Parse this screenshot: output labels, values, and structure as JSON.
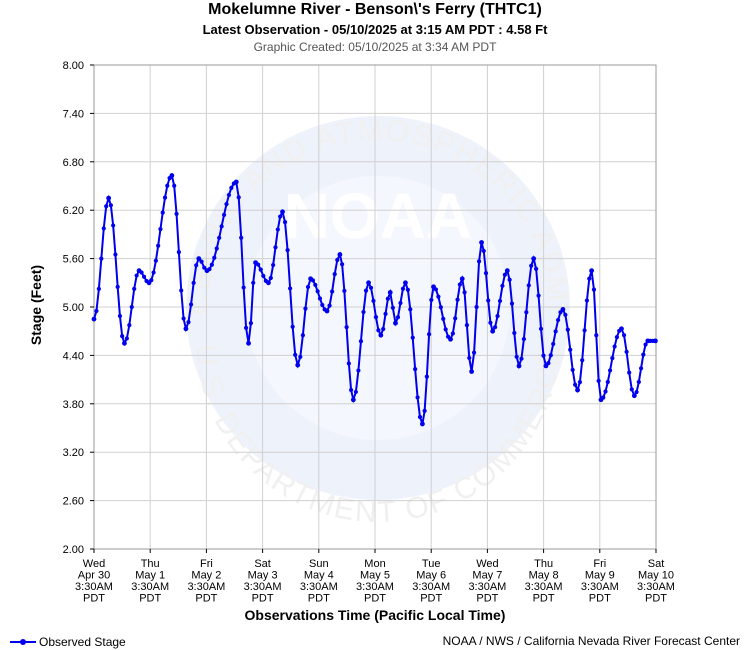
{
  "header": {
    "title": "Mokelumne River - Benson\\'s Ferry (THTC1)",
    "subtitle": "Latest Observation - 05/10/2025 at 3:15 AM PDT : 4.58 Ft",
    "created": "Graphic Created: 05/10/2025 at 3:34 AM PDT"
  },
  "footer": {
    "legend_label": "Observed Stage",
    "credit": "NOAA / NWS / California Nevada River Forecast Center"
  },
  "watermark": {
    "logo_text": "NOAA",
    "ring_top": "NATIONAL OCEANIC AND ATMOSPHERIC ADMINISTRATION",
    "ring_bottom": "U.S. DEPARTMENT OF COMMERCE"
  },
  "colors": {
    "series": "#0000ee",
    "grid": "#d0d0d0",
    "watermark": "#eef2fb"
  },
  "chart_data": {
    "type": "line",
    "title": "Mokelumne River - Benson\\'s Ferry (THTC1)",
    "xlabel": "Observations Time (Pacific Local Time)",
    "ylabel": "Stage (Feet)",
    "ylim": [
      2.0,
      8.0
    ],
    "yticks": [
      "8.00",
      "7.40",
      "6.80",
      "6.20",
      "5.60",
      "5.00",
      "4.40",
      "3.80",
      "3.20",
      "2.60",
      "2.00"
    ],
    "xlim": [
      "2025-04-30 03:30",
      "2025-05-10 03:30"
    ],
    "xticks": [
      {
        "day": "Wed",
        "date": "Apr 30",
        "time": "3:30AM",
        "tz": "PDT"
      },
      {
        "day": "Thu",
        "date": "May 1",
        "time": "3:30AM",
        "tz": "PDT"
      },
      {
        "day": "Fri",
        "date": "May 2",
        "time": "3:30AM",
        "tz": "PDT"
      },
      {
        "day": "Sat",
        "date": "May 3",
        "time": "3:30AM",
        "tz": "PDT"
      },
      {
        "day": "Sun",
        "date": "May 4",
        "time": "3:30AM",
        "tz": "PDT"
      },
      {
        "day": "Mon",
        "date": "May 5",
        "time": "3:30AM",
        "tz": "PDT"
      },
      {
        "day": "Tue",
        "date": "May 6",
        "time": "3:30AM",
        "tz": "PDT"
      },
      {
        "day": "Wed",
        "date": "May 7",
        "time": "3:30AM",
        "tz": "PDT"
      },
      {
        "day": "Thu",
        "date": "May 8",
        "time": "3:30AM",
        "tz": "PDT"
      },
      {
        "day": "Fri",
        "date": "May 9",
        "time": "3:30AM",
        "tz": "PDT"
      },
      {
        "day": "Sat",
        "date": "May 10",
        "time": "3:30AM",
        "tz": "PDT"
      }
    ],
    "grid": true,
    "legend": "bottom-left",
    "series": [
      {
        "name": "Observed Stage",
        "x": [
          "2025-04-30 03:30",
          "2025-04-30 09:45",
          "2025-04-30 16:30",
          "2025-04-30 22:45",
          "2025-05-01 03:00",
          "2025-05-01 12:45",
          "2025-05-01 18:45",
          "2025-05-02 00:15",
          "2025-05-02 03:45",
          "2025-05-02 16:15",
          "2025-05-02 21:30",
          "2025-05-03 00:30",
          "2025-05-03 06:00",
          "2025-05-03 12:00",
          "2025-05-03 18:30",
          "2025-05-04 00:00",
          "2025-05-04 07:00",
          "2025-05-04 12:30",
          "2025-05-04 18:15",
          "2025-05-05 00:45",
          "2025-05-05 06:00",
          "2025-05-05 10:00",
          "2025-05-05 12:15",
          "2025-05-05 16:30",
          "2025-05-05 23:45",
          "2025-05-06 04:30",
          "2025-05-06 11:45",
          "2025-05-06 16:45",
          "2025-05-06 20:45",
          "2025-05-07 01:00",
          "2025-05-07 05:45",
          "2025-05-07 12:00",
          "2025-05-07 17:00",
          "2025-05-07 23:15",
          "2025-05-08 04:30",
          "2025-05-08 11:45",
          "2025-05-08 18:00",
          "2025-05-09 00:00",
          "2025-05-09 04:00",
          "2025-05-09 12:45",
          "2025-05-09 18:15",
          "2025-05-10 00:00",
          "2025-05-10 03:15"
        ],
        "y": [
          4.85,
          6.35,
          4.55,
          5.45,
          5.3,
          6.63,
          4.73,
          5.6,
          5.45,
          6.55,
          4.55,
          5.55,
          5.3,
          6.18,
          4.28,
          5.35,
          4.95,
          5.65,
          3.85,
          5.3,
          4.65,
          5.18,
          4.8,
          5.3,
          3.55,
          5.25,
          4.6,
          5.35,
          4.2,
          5.8,
          4.7,
          5.45,
          4.27,
          5.6,
          4.27,
          4.97,
          3.97,
          5.45,
          3.85,
          4.73,
          3.9,
          4.58,
          4.58
        ]
      }
    ]
  }
}
